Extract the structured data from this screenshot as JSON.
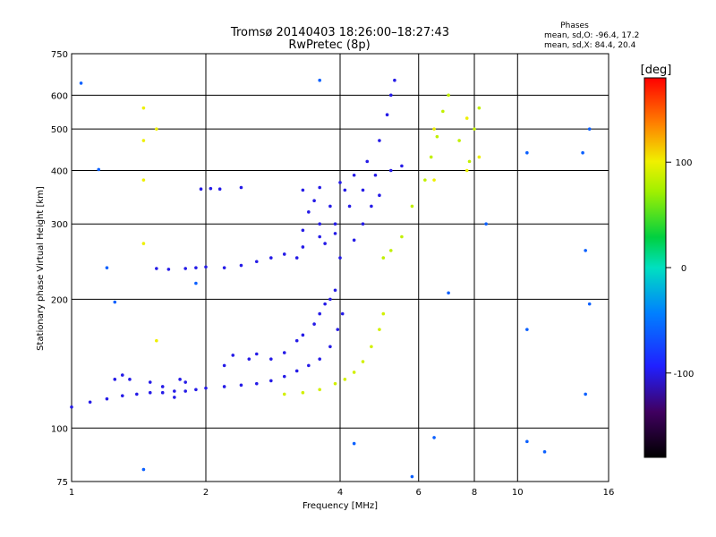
{
  "chart_data": {
    "type": "scatter",
    "title": "Tromsø 20140403 18:26:00–18:27:43",
    "subtitle": "RwPretec (8p)",
    "xlabel": "Frequency [MHz]",
    "ylabel": "Stationary phase Virtual Height [km]",
    "x_scale": "log",
    "y_scale": "log",
    "xlim": [
      1,
      16
    ],
    "ylim": [
      75,
      750
    ],
    "x_ticks": [
      1,
      2,
      4,
      6,
      8,
      10,
      16
    ],
    "y_ticks": [
      75,
      100,
      200,
      300,
      400,
      500,
      600,
      750
    ],
    "grid": true,
    "phase_info": {
      "heading": "Phases",
      "line_o": "mean, sd,O: -96.4, 17.2",
      "line_x": "mean, sd,X:  84.4, 20.4"
    },
    "colorbar": {
      "label": "[deg]",
      "range": [
        -180,
        180
      ],
      "ticks": [
        100,
        0,
        -100
      ]
    },
    "series": [
      {
        "trace": "o_lower_E_F1",
        "phase_mean": -100,
        "points": [
          [
            1.0,
            112
          ],
          [
            1.1,
            115
          ],
          [
            1.2,
            117
          ],
          [
            1.3,
            119
          ],
          [
            1.4,
            120
          ],
          [
            1.5,
            121
          ],
          [
            1.6,
            121
          ],
          [
            1.7,
            122
          ],
          [
            1.8,
            122
          ],
          [
            1.9,
            123
          ],
          [
            2.0,
            124
          ],
          [
            2.2,
            125
          ],
          [
            2.4,
            126
          ],
          [
            2.6,
            127
          ],
          [
            2.8,
            129
          ],
          [
            3.0,
            132
          ],
          [
            3.2,
            136
          ],
          [
            3.4,
            140
          ],
          [
            3.6,
            145
          ],
          [
            3.8,
            155
          ],
          [
            3.95,
            170
          ],
          [
            4.05,
            185
          ]
        ]
      },
      {
        "trace": "o_lower_scatter",
        "phase_mean": -100,
        "points": [
          [
            1.25,
            130
          ],
          [
            1.3,
            133
          ],
          [
            1.35,
            130
          ],
          [
            1.5,
            128
          ],
          [
            1.6,
            125
          ],
          [
            1.7,
            118
          ],
          [
            1.75,
            130
          ],
          [
            1.8,
            128
          ],
          [
            2.2,
            140
          ],
          [
            2.3,
            148
          ],
          [
            2.5,
            145
          ],
          [
            2.6,
            149
          ],
          [
            2.8,
            145
          ],
          [
            3.0,
            150
          ],
          [
            3.2,
            160
          ],
          [
            3.3,
            165
          ],
          [
            3.5,
            175
          ],
          [
            3.6,
            185
          ],
          [
            3.7,
            195
          ],
          [
            3.8,
            200
          ],
          [
            3.9,
            210
          ]
        ]
      },
      {
        "trace": "o_F2_low",
        "phase_mean": -100,
        "points": [
          [
            1.55,
            236
          ],
          [
            1.65,
            235
          ],
          [
            1.8,
            236
          ],
          [
            1.9,
            237
          ],
          [
            2.0,
            238
          ],
          [
            2.2,
            237
          ],
          [
            2.4,
            240
          ],
          [
            2.6,
            245
          ],
          [
            2.8,
            250
          ],
          [
            3.0,
            255
          ],
          [
            3.3,
            265
          ],
          [
            3.6,
            280
          ],
          [
            3.9,
            300
          ],
          [
            4.2,
            330
          ],
          [
            4.5,
            360
          ],
          [
            4.8,
            390
          ],
          [
            5.2,
            400
          ],
          [
            5.5,
            410
          ]
        ]
      },
      {
        "trace": "o_F2_upper",
        "phase_mean": -100,
        "points": [
          [
            1.95,
            362
          ],
          [
            2.05,
            363
          ],
          [
            2.15,
            362
          ],
          [
            2.4,
            365
          ],
          [
            3.3,
            360
          ],
          [
            3.6,
            365
          ],
          [
            4.0,
            375
          ],
          [
            4.3,
            390
          ],
          [
            4.6,
            420
          ],
          [
            4.9,
            470
          ],
          [
            5.1,
            540
          ],
          [
            5.2,
            600
          ],
          [
            5.3,
            650
          ]
        ]
      },
      {
        "trace": "o_F2_cluster",
        "phase_mean": -100,
        "points": [
          [
            3.2,
            250
          ],
          [
            3.3,
            290
          ],
          [
            3.4,
            320
          ],
          [
            3.5,
            340
          ],
          [
            3.6,
            300
          ],
          [
            3.7,
            270
          ],
          [
            3.8,
            330
          ],
          [
            3.9,
            285
          ],
          [
            4.0,
            250
          ],
          [
            4.1,
            360
          ],
          [
            4.3,
            275
          ],
          [
            4.5,
            300
          ],
          [
            4.7,
            330
          ],
          [
            4.9,
            350
          ]
        ]
      },
      {
        "trace": "x_lower",
        "phase_mean": 90,
        "points": [
          [
            3.0,
            120
          ],
          [
            3.3,
            121
          ],
          [
            3.6,
            123
          ],
          [
            3.9,
            127
          ],
          [
            4.1,
            130
          ],
          [
            4.3,
            135
          ],
          [
            4.5,
            143
          ],
          [
            4.7,
            155
          ],
          [
            4.9,
            170
          ],
          [
            5.0,
            185
          ]
        ]
      },
      {
        "trace": "x_upper",
        "phase_mean": 84,
        "points": [
          [
            5.0,
            250
          ],
          [
            5.2,
            260
          ],
          [
            5.5,
            280
          ],
          [
            5.8,
            330
          ],
          [
            6.2,
            380
          ],
          [
            6.4,
            430
          ],
          [
            6.6,
            480
          ],
          [
            6.8,
            550
          ],
          [
            7.0,
            600
          ],
          [
            7.4,
            470
          ],
          [
            7.8,
            420
          ],
          [
            8.0,
            500
          ],
          [
            8.2,
            560
          ]
        ]
      },
      {
        "trace": "vertical_bands",
        "phase_mean": 100,
        "points": [
          [
            1.45,
            270
          ],
          [
            1.45,
            380
          ],
          [
            1.45,
            470
          ],
          [
            1.45,
            560
          ],
          [
            1.55,
            160
          ],
          [
            1.55,
            500
          ],
          [
            6.5,
            380
          ],
          [
            6.5,
            500
          ],
          [
            7.7,
            400
          ],
          [
            7.7,
            530
          ],
          [
            8.2,
            430
          ]
        ]
      },
      {
        "trace": "sparse_noise",
        "phase_mean": -60,
        "points": [
          [
            1.05,
            640
          ],
          [
            1.15,
            402
          ],
          [
            1.2,
            237
          ],
          [
            1.25,
            197
          ],
          [
            1.45,
            80
          ],
          [
            1.9,
            218
          ],
          [
            3.6,
            650
          ],
          [
            4.3,
            92
          ],
          [
            5.8,
            77
          ],
          [
            6.5,
            95
          ],
          [
            7.0,
            207
          ],
          [
            8.5,
            300
          ],
          [
            10.5,
            440
          ],
          [
            10.5,
            170
          ],
          [
            10.5,
            93
          ],
          [
            11.5,
            88
          ],
          [
            14.0,
            440
          ],
          [
            14.2,
            120
          ],
          [
            14.5,
            195
          ],
          [
            14.2,
            260
          ],
          [
            14.5,
            500
          ]
        ]
      }
    ]
  }
}
